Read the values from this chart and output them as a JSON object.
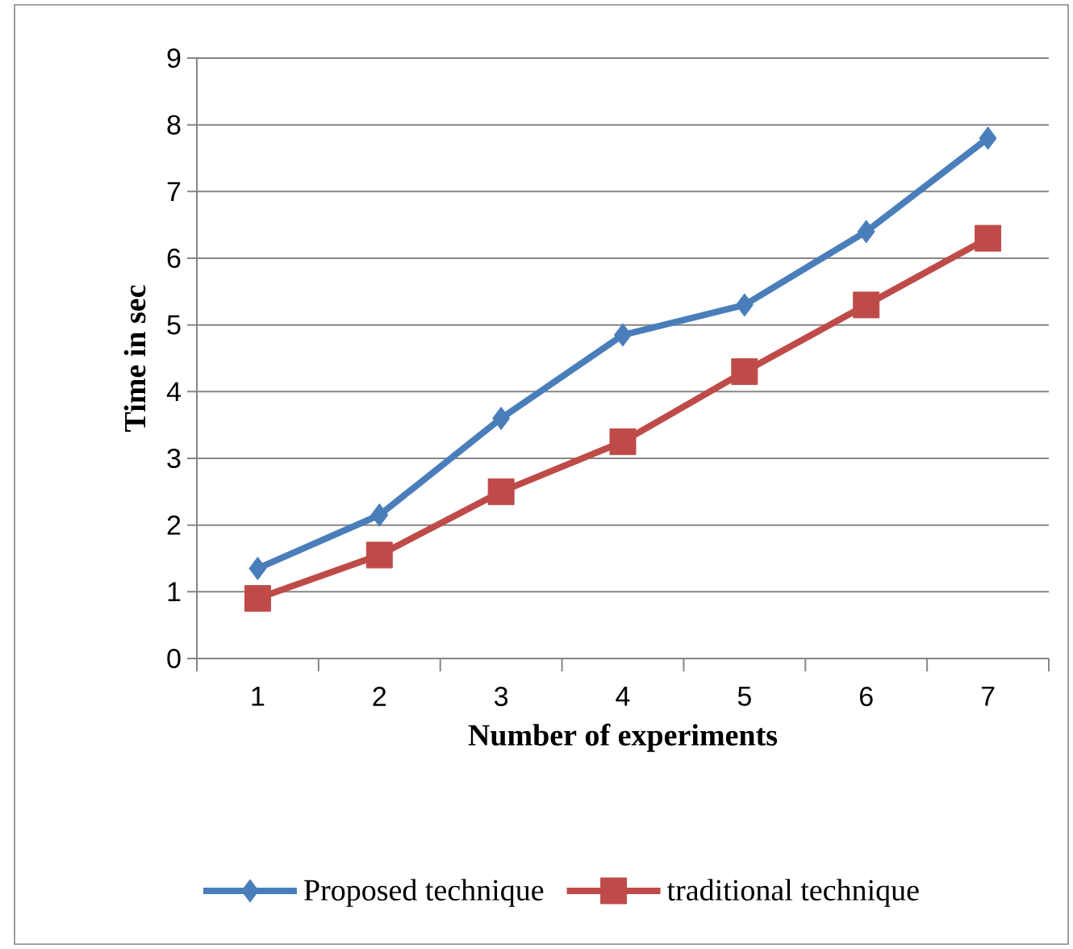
{
  "chart_data": {
    "type": "line",
    "xlabel": "Number of experiments",
    "ylabel": "Time in sec",
    "categories": [
      "1",
      "2",
      "3",
      "4",
      "5",
      "6",
      "7"
    ],
    "series": [
      {
        "name": "Proposed technique",
        "color": "#4a7ebb",
        "marker": "diamond",
        "values": [
          1.35,
          2.15,
          3.6,
          4.85,
          5.3,
          6.4,
          7.8
        ]
      },
      {
        "name": "traditional technique",
        "color": "#be4b48",
        "marker": "square",
        "values": [
          0.9,
          1.55,
          2.5,
          3.25,
          4.3,
          5.3,
          6.3
        ]
      }
    ],
    "ylim": [
      0,
      9
    ],
    "yticks": [
      0,
      1,
      2,
      3,
      4,
      5,
      6,
      7,
      8,
      9
    ],
    "grid": "y",
    "legend": "bottom"
  }
}
